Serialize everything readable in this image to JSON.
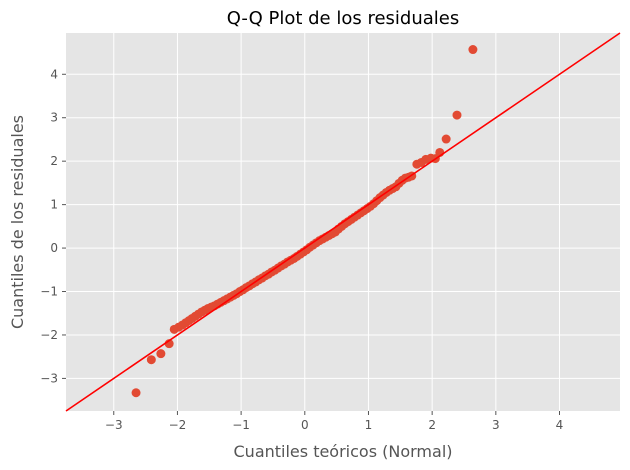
{
  "chart_data": {
    "type": "scatter",
    "title": "Q-Q Plot de los residuales",
    "xlabel": "Cuantiles teóricos (Normal)",
    "ylabel": "Cuantiles de los residuales",
    "xlim": [
      -3.75,
      4.95
    ],
    "ylim": [
      -3.75,
      4.95
    ],
    "xticks": [
      -3,
      -2,
      -1,
      0,
      1,
      2,
      3,
      4
    ],
    "yticks": [
      -3,
      -2,
      -1,
      0,
      1,
      2,
      3,
      4
    ],
    "grid": true,
    "background": "#e5e5e5",
    "point_color": "#e24a33",
    "line_color": "#ff0000",
    "reference_line": {
      "slope": 1,
      "intercept": 0
    },
    "points": [
      {
        "x": -2.65,
        "y": -3.33
      },
      {
        "x": -2.41,
        "y": -2.57
      },
      {
        "x": -2.26,
        "y": -2.43
      },
      {
        "x": -2.13,
        "y": -2.2
      },
      {
        "x": -2.05,
        "y": -1.87
      },
      {
        "x": -1.98,
        "y": -1.82
      },
      {
        "x": -1.92,
        "y": -1.77
      },
      {
        "x": -1.87,
        "y": -1.72
      },
      {
        "x": -1.82,
        "y": -1.67
      },
      {
        "x": -1.77,
        "y": -1.62
      },
      {
        "x": -1.72,
        "y": -1.57
      },
      {
        "x": -1.67,
        "y": -1.52
      },
      {
        "x": -1.62,
        "y": -1.47
      },
      {
        "x": -1.57,
        "y": -1.43
      },
      {
        "x": -1.52,
        "y": -1.39
      },
      {
        "x": -1.47,
        "y": -1.36
      },
      {
        "x": -1.42,
        "y": -1.33
      },
      {
        "x": -1.37,
        "y": -1.29
      },
      {
        "x": -1.32,
        "y": -1.25
      },
      {
        "x": -1.27,
        "y": -1.21
      },
      {
        "x": -1.22,
        "y": -1.17
      },
      {
        "x": -1.17,
        "y": -1.13
      },
      {
        "x": -1.12,
        "y": -1.09
      },
      {
        "x": -1.07,
        "y": -1.05
      },
      {
        "x": -1.02,
        "y": -1.0
      },
      {
        "x": -0.97,
        "y": -0.96
      },
      {
        "x": -0.92,
        "y": -0.91
      },
      {
        "x": -0.87,
        "y": -0.87
      },
      {
        "x": -0.82,
        "y": -0.82
      },
      {
        "x": -0.77,
        "y": -0.78
      },
      {
        "x": -0.72,
        "y": -0.73
      },
      {
        "x": -0.67,
        "y": -0.69
      },
      {
        "x": -0.62,
        "y": -0.64
      },
      {
        "x": -0.57,
        "y": -0.6
      },
      {
        "x": -0.52,
        "y": -0.55
      },
      {
        "x": -0.47,
        "y": -0.51
      },
      {
        "x": -0.42,
        "y": -0.46
      },
      {
        "x": -0.37,
        "y": -0.41
      },
      {
        "x": -0.32,
        "y": -0.37
      },
      {
        "x": -0.27,
        "y": -0.32
      },
      {
        "x": -0.22,
        "y": -0.28
      },
      {
        "x": -0.17,
        "y": -0.24
      },
      {
        "x": -0.12,
        "y": -0.19
      },
      {
        "x": -0.07,
        "y": -0.14
      },
      {
        "x": -0.02,
        "y": -0.09
      },
      {
        "x": 0.03,
        "y": -0.04
      },
      {
        "x": 0.08,
        "y": 0.02
      },
      {
        "x": 0.13,
        "y": 0.07
      },
      {
        "x": 0.18,
        "y": 0.12
      },
      {
        "x": 0.23,
        "y": 0.17
      },
      {
        "x": 0.28,
        "y": 0.21
      },
      {
        "x": 0.33,
        "y": 0.25
      },
      {
        "x": 0.38,
        "y": 0.29
      },
      {
        "x": 0.43,
        "y": 0.33
      },
      {
        "x": 0.48,
        "y": 0.37
      },
      {
        "x": 0.53,
        "y": 0.44
      },
      {
        "x": 0.58,
        "y": 0.5
      },
      {
        "x": 0.63,
        "y": 0.56
      },
      {
        "x": 0.68,
        "y": 0.61
      },
      {
        "x": 0.73,
        "y": 0.66
      },
      {
        "x": 0.78,
        "y": 0.71
      },
      {
        "x": 0.83,
        "y": 0.76
      },
      {
        "x": 0.88,
        "y": 0.81
      },
      {
        "x": 0.93,
        "y": 0.86
      },
      {
        "x": 0.98,
        "y": 0.91
      },
      {
        "x": 1.03,
        "y": 0.96
      },
      {
        "x": 1.08,
        "y": 1.02
      },
      {
        "x": 1.13,
        "y": 1.09
      },
      {
        "x": 1.18,
        "y": 1.16
      },
      {
        "x": 1.23,
        "y": 1.22
      },
      {
        "x": 1.28,
        "y": 1.28
      },
      {
        "x": 1.33,
        "y": 1.33
      },
      {
        "x": 1.38,
        "y": 1.37
      },
      {
        "x": 1.43,
        "y": 1.41
      },
      {
        "x": 1.48,
        "y": 1.49
      },
      {
        "x": 1.53,
        "y": 1.56
      },
      {
        "x": 1.58,
        "y": 1.61
      },
      {
        "x": 1.63,
        "y": 1.63
      },
      {
        "x": 1.68,
        "y": 1.66
      },
      {
        "x": 1.76,
        "y": 1.93
      },
      {
        "x": 1.83,
        "y": 1.97
      },
      {
        "x": 1.9,
        "y": 2.04
      },
      {
        "x": 1.98,
        "y": 2.07
      },
      {
        "x": 2.05,
        "y": 2.06
      },
      {
        "x": 2.12,
        "y": 2.2
      },
      {
        "x": 2.22,
        "y": 2.51
      },
      {
        "x": 2.39,
        "y": 3.06
      },
      {
        "x": 2.64,
        "y": 4.57
      }
    ]
  }
}
